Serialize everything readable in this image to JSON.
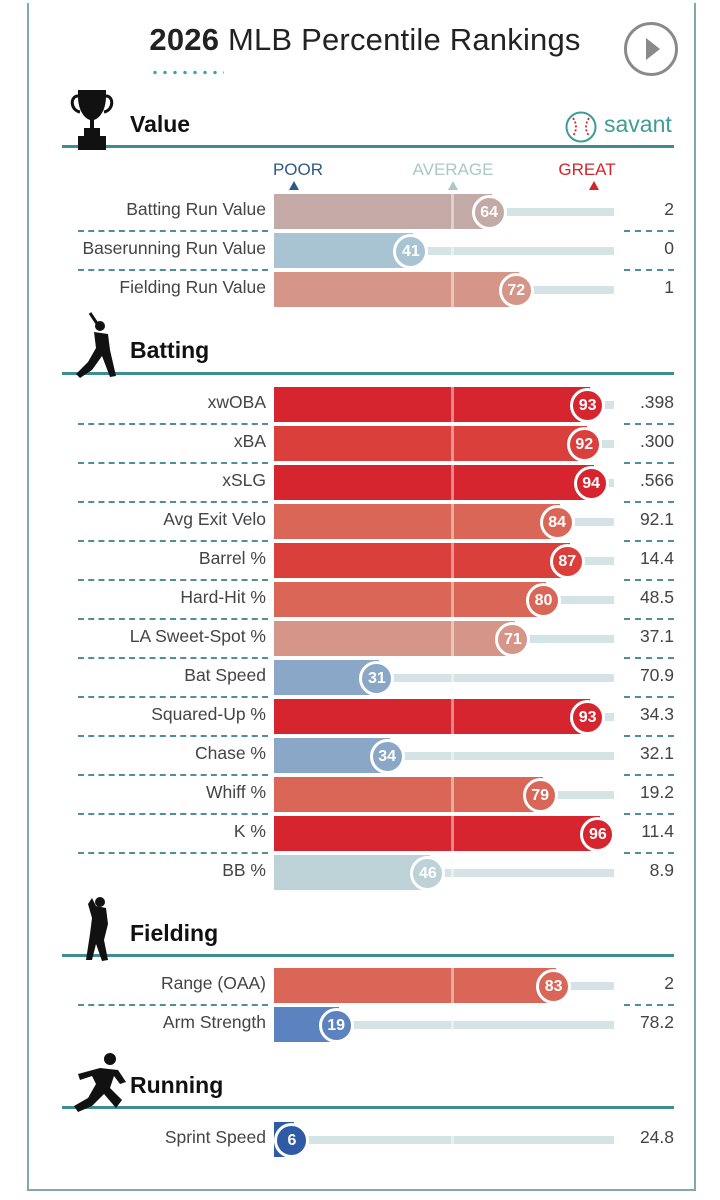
{
  "header": {
    "title_year": "2026",
    "title_rest": " MLB Percentile Rankings",
    "play_icon": "play-icon"
  },
  "brand": {
    "label": "savant",
    "icon": "baseball-icon",
    "color": "#3e9c97"
  },
  "scale": {
    "poor": "POOR",
    "average": "AVERAGE",
    "great": "GREAT",
    "poor_color": "#2e5a88",
    "average_color": "#a9c8cc",
    "great_color": "#d3232c"
  },
  "colors": {
    "accent_line": "#3e8d92",
    "track": "#d3e3e6",
    "percentile_scale": [
      "#2f5ba6",
      "#6f8fc1",
      "#9fb8cf",
      "#bcd2d7",
      "#c3a9a9",
      "#d88b7f",
      "#dc5f54",
      "#d62a31"
    ]
  },
  "chart_data": {
    "type": "bar",
    "orientation": "horizontal",
    "xlim": [
      0,
      100
    ],
    "xlabel": "",
    "ylabel": "",
    "sections": [
      {
        "name": "Value",
        "icon": "trophy-icon",
        "metrics": [
          {
            "label": "Batting Run Value",
            "percentile": 64,
            "value": "2"
          },
          {
            "label": "Baserunning Run Value",
            "percentile": 41,
            "value": "0"
          },
          {
            "label": "Fielding Run Value",
            "percentile": 72,
            "value": "1"
          }
        ]
      },
      {
        "name": "Batting",
        "icon": "batter-icon",
        "metrics": [
          {
            "label": "xwOBA",
            "percentile": 93,
            "value": ".398"
          },
          {
            "label": "xBA",
            "percentile": 92,
            "value": ".300"
          },
          {
            "label": "xSLG",
            "percentile": 94,
            "value": ".566"
          },
          {
            "label": "Avg Exit Velo",
            "percentile": 84,
            "value": "92.1"
          },
          {
            "label": "Barrel %",
            "percentile": 87,
            "value": "14.4"
          },
          {
            "label": "Hard-Hit %",
            "percentile": 80,
            "value": "48.5"
          },
          {
            "label": "LA Sweet-Spot %",
            "percentile": 71,
            "value": "37.1"
          },
          {
            "label": "Bat Speed",
            "percentile": 31,
            "value": "70.9"
          },
          {
            "label": "Squared-Up %",
            "percentile": 93,
            "value": "34.3"
          },
          {
            "label": "Chase %",
            "percentile": 34,
            "value": "32.1"
          },
          {
            "label": "Whiff %",
            "percentile": 79,
            "value": "19.2"
          },
          {
            "label": "K %",
            "percentile": 96,
            "value": "11.4"
          },
          {
            "label": "BB %",
            "percentile": 46,
            "value": "8.9"
          }
        ]
      },
      {
        "name": "Fielding",
        "icon": "fielder-icon",
        "metrics": [
          {
            "label": "Range (OAA)",
            "percentile": 83,
            "value": "2"
          },
          {
            "label": "Arm Strength",
            "percentile": 19,
            "value": "78.2"
          }
        ]
      },
      {
        "name": "Running",
        "icon": "runner-icon",
        "metrics": [
          {
            "label": "Sprint Speed",
            "percentile": 6,
            "value": "24.8"
          }
        ]
      }
    ]
  }
}
